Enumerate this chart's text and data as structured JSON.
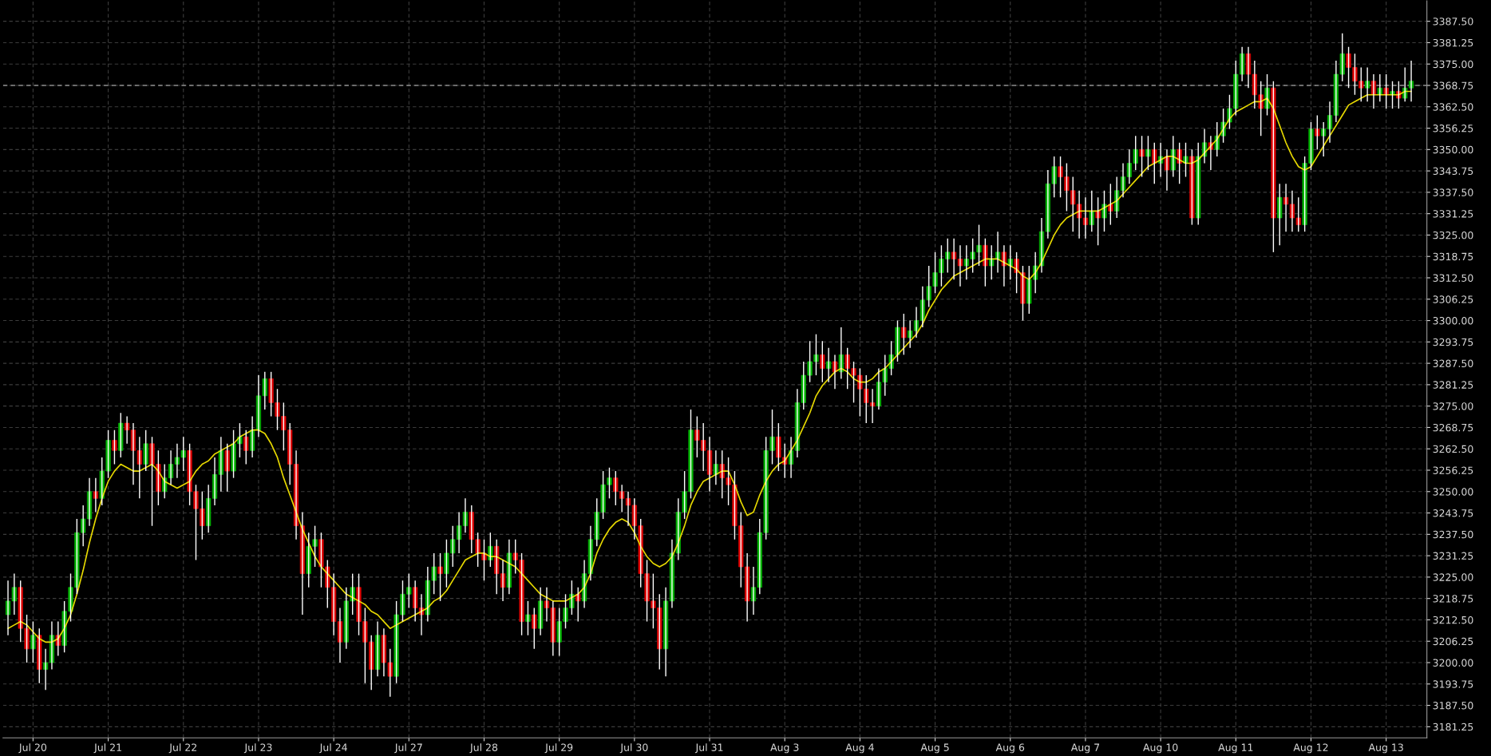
{
  "chart_data": {
    "type": "candlestick",
    "categories": [
      null,
      null,
      null,
      null,
      "Jul 20",
      null,
      null,
      null,
      null,
      null,
      null,
      null,
      null,
      null,
      null,
      null,
      "Jul 21",
      null,
      null,
      null,
      null,
      null,
      null,
      null,
      null,
      null,
      null,
      null,
      "Jul 22",
      null,
      null,
      null,
      null,
      null,
      null,
      null,
      null,
      null,
      null,
      null,
      "Jul 23",
      null,
      null,
      null,
      null,
      null,
      null,
      null,
      null,
      null,
      null,
      null,
      "Jul 24",
      null,
      null,
      null,
      null,
      null,
      null,
      null,
      null,
      null,
      null,
      null,
      "Jul 27",
      null,
      null,
      null,
      null,
      null,
      null,
      null,
      null,
      null,
      null,
      null,
      "Jul 28",
      null,
      null,
      null,
      null,
      null,
      null,
      null,
      null,
      null,
      null,
      null,
      "Jul 29",
      null,
      null,
      null,
      null,
      null,
      null,
      null,
      null,
      null,
      null,
      null,
      "Jul 30",
      null,
      null,
      null,
      null,
      null,
      null,
      null,
      null,
      null,
      null,
      null,
      "Jul 31",
      null,
      null,
      null,
      null,
      null,
      null,
      null,
      null,
      null,
      null,
      null,
      "Aug 3",
      null,
      null,
      null,
      null,
      null,
      null,
      null,
      null,
      null,
      null,
      null,
      "Aug 4",
      null,
      null,
      null,
      null,
      null,
      null,
      null,
      null,
      null,
      null,
      null,
      "Aug 5",
      null,
      null,
      null,
      null,
      null,
      null,
      null,
      null,
      null,
      null,
      null,
      "Aug 6",
      null,
      null,
      null,
      null,
      null,
      null,
      null,
      null,
      null,
      null,
      null,
      "Aug 7",
      null,
      null,
      null,
      null,
      null,
      null,
      null,
      null,
      null,
      null,
      null,
      "Aug 10",
      null,
      null,
      null,
      null,
      null,
      null,
      null,
      null,
      null,
      null,
      null,
      "Aug 11",
      null,
      null,
      null,
      null,
      null,
      null,
      null,
      null,
      null,
      null,
      null,
      "Aug 12",
      null,
      null,
      null,
      null,
      null,
      null,
      null,
      null,
      null,
      null,
      null,
      "Aug 13",
      null,
      null,
      null,
      null
    ],
    "series": [
      {
        "colors": [
          "#00b400",
          "#00b400",
          "#e00000",
          "#e00000",
          "#00b400",
          "#e00000",
          "#00b400",
          "#00b400",
          "#e00000",
          "#00b400",
          "#00b400",
          "#00b400",
          "#00b400",
          "#00b400",
          "#e00000",
          "#00b400",
          "#00b400",
          "#e00000",
          "#00b400",
          "#e00000",
          "#e00000",
          "#e00000",
          "#00b400",
          "#e00000",
          "#e00000",
          "#00b400",
          "#00b400",
          "#00b400",
          "#00b400",
          "#e00000",
          "#e00000",
          "#e00000",
          "#00b400",
          "#00b400",
          "#00b400",
          "#e00000",
          "#00b400",
          "#00b400",
          "#e00000",
          "#00b400",
          "#00b400",
          "#00b400",
          "#e00000",
          "#e00000",
          "#e00000",
          "#e00000",
          "#e00000",
          "#e00000",
          "#00b400",
          "#00b400",
          "#e00000",
          "#e00000",
          "#e00000",
          "#e00000",
          "#00b400",
          "#00b400",
          "#e00000",
          "#e00000",
          "#e00000",
          "#00b400",
          "#e00000",
          "#e00000",
          "#00b400",
          "#00b400",
          "#00b400",
          "#e00000",
          "#e00000",
          "#00b400",
          "#00b400",
          "#e00000",
          "#00b400",
          "#00b400",
          "#00b400",
          "#00b400",
          "#e00000",
          "#e00000",
          "#e00000",
          "#00b400",
          "#e00000",
          "#e00000",
          "#00b400",
          "#e00000",
          "#e00000",
          "#00b400",
          "#e00000",
          "#00b400",
          "#e00000",
          "#e00000",
          "#00b400",
          "#00b400",
          "#00b400",
          "#e00000",
          "#00b400",
          "#00b400",
          "#00b400",
          "#00b400",
          "#00b400",
          "#e00000",
          "#e00000",
          "#e00000",
          "#e00000",
          "#e00000",
          "#e00000",
          "#e00000",
          "#e00000",
          "#00b400",
          "#00b400",
          "#00b400",
          "#00b400",
          "#00b400",
          "#e00000",
          "#e00000",
          "#e00000",
          "#00b400",
          "#e00000",
          "#e00000",
          "#e00000",
          "#e00000",
          "#e00000",
          "#00b400",
          "#00b400",
          "#00b400",
          "#00b400",
          "#e00000",
          "#e00000",
          "#00b400",
          "#00b400",
          "#00b400",
          "#00b400",
          "#00b400",
          "#e00000",
          "#00b400",
          "#e00000",
          "#00b400",
          "#e00000",
          "#e00000",
          "#e00000",
          "#e00000",
          "#e00000",
          "#00b400",
          "#00b400",
          "#00b400",
          "#00b400",
          "#e00000",
          "#00b400",
          "#00b400",
          "#00b400",
          "#00b400",
          "#00b400",
          "#00b400",
          "#00b400",
          "#e00000",
          "#e00000",
          "#00b400",
          "#00b400",
          "#00b400",
          "#e00000",
          "#00b400",
          "#00b400",
          "#e00000",
          "#00b400",
          "#e00000",
          "#e00000",
          "#00b400",
          "#00b400",
          "#00b400",
          "#00b400",
          "#00b400",
          "#e00000",
          "#e00000",
          "#e00000",
          "#e00000",
          "#e00000",
          "#00b400",
          "#e00000",
          "#00b400",
          "#e00000",
          "#00b400",
          "#00b400",
          "#00b400",
          "#00b400",
          "#e00000",
          "#00b400",
          "#e00000",
          "#00b400",
          "#e00000",
          "#00b400",
          "#e00000",
          "#00b400",
          "#e00000",
          "#00b400",
          "#00b400",
          "#e00000",
          "#00b400",
          "#00b400",
          "#00b400",
          "#00b400",
          "#00b400",
          "#e00000",
          "#e00000",
          "#e00000",
          "#00b400",
          "#e00000",
          "#00b400",
          "#e00000",
          "#e00000",
          "#e00000",
          "#00b400",
          "#00b400",
          "#e00000",
          "#00b400",
          "#00b400",
          "#00b400",
          "#00b400",
          "#e00000",
          "#e00000",
          "#e00000",
          "#00b400",
          "#e00000",
          "#00b400",
          "#e00000",
          "#00b400",
          "#e00000",
          "#00b400",
          "#00b400"
        ],
        "ohlc": [
          [
            3214,
            3224,
            3208,
            3218
          ],
          [
            3218,
            3226,
            3214,
            3222
          ],
          [
            3222,
            3224,
            3206,
            3210
          ],
          [
            3210,
            3214,
            3200,
            3204
          ],
          [
            3204,
            3212,
            3200,
            3208
          ],
          [
            3208,
            3210,
            3194,
            3198
          ],
          [
            3198,
            3204,
            3192,
            3200
          ],
          [
            3200,
            3212,
            3198,
            3208
          ],
          [
            3208,
            3212,
            3202,
            3205
          ],
          [
            3205,
            3218,
            3203,
            3215
          ],
          [
            3215,
            3226,
            3212,
            3222
          ],
          [
            3222,
            3242,
            3220,
            3238
          ],
          [
            3238,
            3246,
            3234,
            3242
          ],
          [
            3242,
            3254,
            3240,
            3250
          ],
          [
            3250,
            3254,
            3244,
            3248
          ],
          [
            3248,
            3260,
            3246,
            3256
          ],
          [
            3256,
            3268,
            3254,
            3265
          ],
          [
            3265,
            3268,
            3258,
            3262
          ],
          [
            3262,
            3273,
            3260,
            3270
          ],
          [
            3270,
            3272,
            3264,
            3268
          ],
          [
            3268,
            3270,
            3252,
            3262
          ],
          [
            3262,
            3266,
            3248,
            3258
          ],
          [
            3258,
            3268,
            3256,
            3264
          ],
          [
            3264,
            3266,
            3240,
            3258
          ],
          [
            3258,
            3262,
            3246,
            3250
          ],
          [
            3250,
            3258,
            3248,
            3254
          ],
          [
            3254,
            3262,
            3252,
            3258
          ],
          [
            3258,
            3264,
            3254,
            3260
          ],
          [
            3260,
            3266,
            3256,
            3262
          ],
          [
            3262,
            3264,
            3246,
            3250
          ],
          [
            3250,
            3252,
            3230,
            3245
          ],
          [
            3245,
            3250,
            3236,
            3240
          ],
          [
            3240,
            3252,
            3238,
            3248
          ],
          [
            3248,
            3260,
            3246,
            3255
          ],
          [
            3255,
            3266,
            3250,
            3262
          ],
          [
            3262,
            3264,
            3250,
            3256
          ],
          [
            3256,
            3268,
            3254,
            3264
          ],
          [
            3264,
            3270,
            3260,
            3266
          ],
          [
            3266,
            3268,
            3258,
            3262
          ],
          [
            3262,
            3272,
            3260,
            3268
          ],
          [
            3268,
            3284,
            3266,
            3278
          ],
          [
            3278,
            3285,
            3274,
            3283
          ],
          [
            3283,
            3285,
            3272,
            3276
          ],
          [
            3276,
            3280,
            3268,
            3272
          ],
          [
            3272,
            3276,
            3262,
            3268
          ],
          [
            3268,
            3270,
            3252,
            3258
          ],
          [
            3258,
            3262,
            3236,
            3240
          ],
          [
            3240,
            3244,
            3214,
            3226
          ],
          [
            3226,
            3238,
            3222,
            3234
          ],
          [
            3234,
            3240,
            3228,
            3236
          ],
          [
            3236,
            3238,
            3222,
            3228
          ],
          [
            3228,
            3230,
            3216,
            3222
          ],
          [
            3222,
            3226,
            3208,
            3212
          ],
          [
            3212,
            3216,
            3200,
            3206
          ],
          [
            3206,
            3222,
            3204,
            3218
          ],
          [
            3218,
            3226,
            3214,
            3222
          ],
          [
            3222,
            3226,
            3208,
            3212
          ],
          [
            3212,
            3216,
            3194,
            3206
          ],
          [
            3206,
            3208,
            3192,
            3198
          ],
          [
            3198,
            3212,
            3196,
            3208
          ],
          [
            3208,
            3210,
            3196,
            3200
          ],
          [
            3200,
            3204,
            3190,
            3196
          ],
          [
            3196,
            3218,
            3194,
            3214
          ],
          [
            3214,
            3224,
            3212,
            3220
          ],
          [
            3220,
            3226,
            3216,
            3222
          ],
          [
            3222,
            3224,
            3212,
            3216
          ],
          [
            3216,
            3220,
            3208,
            3214
          ],
          [
            3214,
            3228,
            3212,
            3224
          ],
          [
            3224,
            3232,
            3220,
            3228
          ],
          [
            3228,
            3232,
            3218,
            3226
          ],
          [
            3226,
            3236,
            3222,
            3232
          ],
          [
            3232,
            3240,
            3228,
            3236
          ],
          [
            3236,
            3244,
            3232,
            3240
          ],
          [
            3240,
            3248,
            3238,
            3244
          ],
          [
            3244,
            3246,
            3232,
            3236
          ],
          [
            3236,
            3238,
            3228,
            3232
          ],
          [
            3232,
            3236,
            3224,
            3230
          ],
          [
            3230,
            3238,
            3228,
            3234
          ],
          [
            3234,
            3236,
            3220,
            3226
          ],
          [
            3226,
            3230,
            3218,
            3222
          ],
          [
            3222,
            3236,
            3220,
            3232
          ],
          [
            3232,
            3236,
            3226,
            3230
          ],
          [
            3230,
            3232,
            3208,
            3212
          ],
          [
            3212,
            3218,
            3208,
            3214
          ],
          [
            3214,
            3216,
            3204,
            3210
          ],
          [
            3210,
            3222,
            3208,
            3218
          ],
          [
            3218,
            3222,
            3212,
            3216
          ],
          [
            3216,
            3218,
            3202,
            3206
          ],
          [
            3206,
            3216,
            3202,
            3212
          ],
          [
            3212,
            3220,
            3210,
            3216
          ],
          [
            3216,
            3224,
            3214,
            3220
          ],
          [
            3220,
            3222,
            3212,
            3218
          ],
          [
            3218,
            3230,
            3216,
            3226
          ],
          [
            3226,
            3240,
            3224,
            3236
          ],
          [
            3236,
            3248,
            3234,
            3244
          ],
          [
            3244,
            3256,
            3242,
            3252
          ],
          [
            3252,
            3257,
            3248,
            3254
          ],
          [
            3254,
            3256,
            3246,
            3250
          ],
          [
            3250,
            3252,
            3244,
            3248
          ],
          [
            3248,
            3250,
            3240,
            3246
          ],
          [
            3246,
            3248,
            3236,
            3240
          ],
          [
            3240,
            3242,
            3222,
            3226
          ],
          [
            3226,
            3230,
            3212,
            3218
          ],
          [
            3218,
            3226,
            3210,
            3216
          ],
          [
            3216,
            3220,
            3198,
            3204
          ],
          [
            3204,
            3222,
            3196,
            3218
          ],
          [
            3218,
            3236,
            3216,
            3232
          ],
          [
            3232,
            3248,
            3230,
            3244
          ],
          [
            3244,
            3256,
            3242,
            3250
          ],
          [
            3250,
            3274,
            3248,
            3268
          ],
          [
            3268,
            3272,
            3260,
            3265
          ],
          [
            3265,
            3270,
            3256,
            3262
          ],
          [
            3262,
            3266,
            3250,
            3255
          ],
          [
            3255,
            3262,
            3252,
            3258
          ],
          [
            3258,
            3262,
            3248,
            3254
          ],
          [
            3254,
            3260,
            3246,
            3252
          ],
          [
            3252,
            3256,
            3236,
            3240
          ],
          [
            3240,
            3244,
            3222,
            3228
          ],
          [
            3228,
            3232,
            3212,
            3218
          ],
          [
            3218,
            3228,
            3214,
            3222
          ],
          [
            3222,
            3242,
            3220,
            3238
          ],
          [
            3238,
            3266,
            3236,
            3262
          ],
          [
            3262,
            3274,
            3258,
            3266
          ],
          [
            3266,
            3270,
            3256,
            3260
          ],
          [
            3260,
            3264,
            3254,
            3258
          ],
          [
            3258,
            3266,
            3254,
            3262
          ],
          [
            3262,
            3280,
            3260,
            3276
          ],
          [
            3276,
            3288,
            3274,
            3284
          ],
          [
            3284,
            3294,
            3282,
            3288
          ],
          [
            3288,
            3296,
            3284,
            3290
          ],
          [
            3290,
            3294,
            3282,
            3286
          ],
          [
            3286,
            3292,
            3282,
            3288
          ],
          [
            3288,
            3290,
            3280,
            3285
          ],
          [
            3285,
            3298,
            3283,
            3290
          ],
          [
            3290,
            3292,
            3280,
            3286
          ],
          [
            3286,
            3288,
            3276,
            3284
          ],
          [
            3284,
            3286,
            3272,
            3280
          ],
          [
            3280,
            3284,
            3270,
            3276
          ],
          [
            3276,
            3280,
            3270,
            3275
          ],
          [
            3275,
            3286,
            3274,
            3282
          ],
          [
            3282,
            3290,
            3278,
            3286
          ],
          [
            3286,
            3294,
            3284,
            3290
          ],
          [
            3290,
            3300,
            3288,
            3298
          ],
          [
            3298,
            3302,
            3290,
            3295
          ],
          [
            3295,
            3300,
            3292,
            3297
          ],
          [
            3297,
            3304,
            3295,
            3300
          ],
          [
            3300,
            3310,
            3298,
            3306
          ],
          [
            3306,
            3316,
            3304,
            3310
          ],
          [
            3310,
            3320,
            3308,
            3314
          ],
          [
            3314,
            3322,
            3310,
            3318
          ],
          [
            3318,
            3324,
            3314,
            3320
          ],
          [
            3320,
            3324,
            3312,
            3318
          ],
          [
            3318,
            3322,
            3310,
            3316
          ],
          [
            3316,
            3322,
            3312,
            3318
          ],
          [
            3318,
            3324,
            3314,
            3320
          ],
          [
            3320,
            3328,
            3316,
            3322
          ],
          [
            3322,
            3324,
            3310,
            3316
          ],
          [
            3316,
            3322,
            3312,
            3318
          ],
          [
            3318,
            3326,
            3314,
            3320
          ],
          [
            3320,
            3322,
            3310,
            3316
          ],
          [
            3316,
            3322,
            3312,
            3318
          ],
          [
            3318,
            3320,
            3308,
            3314
          ],
          [
            3314,
            3316,
            3300,
            3305
          ],
          [
            3305,
            3316,
            3302,
            3312
          ],
          [
            3312,
            3320,
            3308,
            3316
          ],
          [
            3316,
            3330,
            3314,
            3326
          ],
          [
            3326,
            3344,
            3324,
            3340
          ],
          [
            3340,
            3348,
            3336,
            3345
          ],
          [
            3345,
            3348,
            3336,
            3342
          ],
          [
            3342,
            3346,
            3332,
            3338
          ],
          [
            3338,
            3342,
            3326,
            3334
          ],
          [
            3334,
            3338,
            3324,
            3330
          ],
          [
            3330,
            3336,
            3324,
            3328
          ],
          [
            3328,
            3338,
            3326,
            3332
          ],
          [
            3332,
            3336,
            3322,
            3330
          ],
          [
            3330,
            3338,
            3326,
            3334
          ],
          [
            3334,
            3340,
            3328,
            3332
          ],
          [
            3332,
            3342,
            3330,
            3338
          ],
          [
            3338,
            3346,
            3336,
            3342
          ],
          [
            3342,
            3350,
            3340,
            3346
          ],
          [
            3346,
            3354,
            3344,
            3350
          ],
          [
            3350,
            3354,
            3342,
            3348
          ],
          [
            3348,
            3354,
            3344,
            3350
          ],
          [
            3350,
            3352,
            3340,
            3346
          ],
          [
            3346,
            3352,
            3342,
            3348
          ],
          [
            3348,
            3350,
            3338,
            3344
          ],
          [
            3344,
            3354,
            3342,
            3350
          ],
          [
            3350,
            3352,
            3340,
            3346
          ],
          [
            3346,
            3352,
            3342,
            3348
          ],
          [
            3348,
            3350,
            3328,
            3330
          ],
          [
            3330,
            3352,
            3328,
            3348
          ],
          [
            3348,
            3356,
            3346,
            3352
          ],
          [
            3352,
            3354,
            3344,
            3350
          ],
          [
            3350,
            3358,
            3348,
            3354
          ],
          [
            3354,
            3362,
            3352,
            3358
          ],
          [
            3358,
            3366,
            3356,
            3362
          ],
          [
            3362,
            3376,
            3360,
            3372
          ],
          [
            3372,
            3380,
            3370,
            3378
          ],
          [
            3378,
            3380,
            3368,
            3372
          ],
          [
            3372,
            3376,
            3362,
            3366
          ],
          [
            3366,
            3370,
            3354,
            3362
          ],
          [
            3362,
            3372,
            3360,
            3368
          ],
          [
            3368,
            3370,
            3320,
            3330
          ],
          [
            3330,
            3340,
            3322,
            3336
          ],
          [
            3336,
            3340,
            3326,
            3334
          ],
          [
            3334,
            3338,
            3326,
            3330
          ],
          [
            3330,
            3336,
            3326,
            3328
          ],
          [
            3328,
            3348,
            3326,
            3346
          ],
          [
            3346,
            3358,
            3344,
            3356
          ],
          [
            3356,
            3360,
            3350,
            3354
          ],
          [
            3354,
            3358,
            3348,
            3356
          ],
          [
            3356,
            3364,
            3352,
            3360
          ],
          [
            3360,
            3376,
            3358,
            3372
          ],
          [
            3372,
            3384,
            3370,
            3378
          ],
          [
            3378,
            3380,
            3368,
            3374
          ],
          [
            3374,
            3378,
            3366,
            3370
          ],
          [
            3370,
            3374,
            3364,
            3368
          ],
          [
            3368,
            3374,
            3364,
            3370
          ],
          [
            3370,
            3372,
            3362,
            3366
          ],
          [
            3366,
            3372,
            3364,
            3368
          ],
          [
            3368,
            3372,
            3362,
            3366
          ],
          [
            3366,
            3370,
            3362,
            3367
          ],
          [
            3367,
            3370,
            3362,
            3365
          ],
          [
            3365,
            3374,
            3364,
            3368
          ],
          [
            3368,
            3376,
            3364,
            3370
          ]
        ]
      },
      {
        "type": "line",
        "color": "#e6d800",
        "values": [
          3210,
          3211,
          3212,
          3211,
          3209,
          3207,
          3206,
          3206,
          3207,
          3210,
          3214,
          3220,
          3227,
          3235,
          3242,
          3248,
          3253,
          3256,
          3258,
          3257,
          3256,
          3256,
          3257,
          3258,
          3256,
          3253,
          3252,
          3251,
          3252,
          3253,
          3256,
          3258,
          3259,
          3261,
          3262,
          3263,
          3264,
          3266,
          3267,
          3268,
          3268,
          3267,
          3264,
          3260,
          3254,
          3249,
          3244,
          3239,
          3235,
          3231,
          3228,
          3226,
          3224,
          3222,
          3220,
          3219,
          3218,
          3217,
          3215,
          3214,
          3212,
          3210,
          3211,
          3212,
          3213,
          3214,
          3215,
          3216,
          3218,
          3219,
          3221,
          3224,
          3227,
          3230,
          3231,
          3232,
          3232,
          3231,
          3231,
          3230,
          3229,
          3228,
          3226,
          3224,
          3222,
          3220,
          3219,
          3218,
          3218,
          3218,
          3219,
          3220,
          3222,
          3226,
          3232,
          3236,
          3239,
          3241,
          3242,
          3241,
          3238,
          3234,
          3231,
          3229,
          3228,
          3229,
          3231,
          3235,
          3240,
          3246,
          3250,
          3253,
          3254,
          3255,
          3256,
          3256,
          3252,
          3247,
          3243,
          3244,
          3249,
          3253,
          3256,
          3258,
          3259,
          3262,
          3265,
          3269,
          3273,
          3278,
          3281,
          3283,
          3285,
          3286,
          3285,
          3283,
          3282,
          3282,
          3283,
          3285,
          3286,
          3288,
          3290,
          3292,
          3294,
          3296,
          3299,
          3303,
          3306,
          3309,
          3311,
          3313,
          3314,
          3315,
          3316,
          3317,
          3318,
          3318,
          3318,
          3317,
          3316,
          3315,
          3313,
          3312,
          3314,
          3317,
          3321,
          3325,
          3328,
          3330,
          3331,
          3332,
          3332,
          3332,
          3332,
          3333,
          3334,
          3335,
          3337,
          3339,
          3341,
          3343,
          3345,
          3346,
          3347,
          3348,
          3348,
          3347,
          3346,
          3346,
          3347,
          3349,
          3351,
          3353,
          3356,
          3359,
          3361,
          3362,
          3363,
          3364,
          3364,
          3365,
          3362,
          3357,
          3352,
          3348,
          3345,
          3344,
          3345,
          3348,
          3351,
          3354,
          3357,
          3360,
          3363,
          3364,
          3365,
          3366,
          3366,
          3366,
          3366,
          3366,
          3366,
          3367,
          3367
        ]
      }
    ],
    "ylim": [
      3178,
      3393.5
    ],
    "yticks": [
      {
        "value": 3181.25,
        "label": "3181.25"
      },
      {
        "value": 3187.5,
        "label": "3187.50"
      },
      {
        "value": 3193.75,
        "label": "3193.75"
      },
      {
        "value": 3200,
        "label": "3200.00"
      },
      {
        "value": 3206.25,
        "label": "3206.25"
      },
      {
        "value": 3212.5,
        "label": "3212.50"
      },
      {
        "value": 3218.75,
        "label": "3218.75"
      },
      {
        "value": 3225,
        "label": "3225.00"
      },
      {
        "value": 3231.25,
        "label": "3231.25"
      },
      {
        "value": 3237.5,
        "label": "3237.50"
      },
      {
        "value": 3243.75,
        "label": "3243.75"
      },
      {
        "value": 3250,
        "label": "3250.00"
      },
      {
        "value": 3256.25,
        "label": "3256.25"
      },
      {
        "value": 3262.5,
        "label": "3262.50"
      },
      {
        "value": 3268.75,
        "label": "3268.75"
      },
      {
        "value": 3275,
        "label": "3275.00"
      },
      {
        "value": 3281.25,
        "label": "3281.25"
      },
      {
        "value": 3287.5,
        "label": "3287.50"
      },
      {
        "value": 3293.75,
        "label": "3293.75"
      },
      {
        "value": 3300,
        "label": "3300.00"
      },
      {
        "value": 3306.25,
        "label": "3306.25"
      },
      {
        "value": 3312.5,
        "label": "3312.50"
      },
      {
        "value": 3318.75,
        "label": "3318.75"
      },
      {
        "value": 3325,
        "label": "3325.00"
      },
      {
        "value": 3331.25,
        "label": "3331.25"
      },
      {
        "value": 3337.5,
        "label": "3337.50"
      },
      {
        "value": 3343.75,
        "label": "3343.75"
      },
      {
        "value": 3350,
        "label": "3350.00"
      },
      {
        "value": 3356.25,
        "label": "3356.25"
      },
      {
        "value": 3362.5,
        "label": "3362.50"
      },
      {
        "value": 3368.75,
        "label": "3368.75"
      },
      {
        "value": 3375,
        "label": "3375.00"
      },
      {
        "value": 3381.25,
        "label": "3381.25"
      },
      {
        "value": 3387.5,
        "label": "3387.50"
      }
    ],
    "ref_lines": [
      {
        "axis": "y",
        "value": 3368.75,
        "color": "#8c8c8c",
        "line_style": "dashed"
      }
    ],
    "grid": true
  }
}
